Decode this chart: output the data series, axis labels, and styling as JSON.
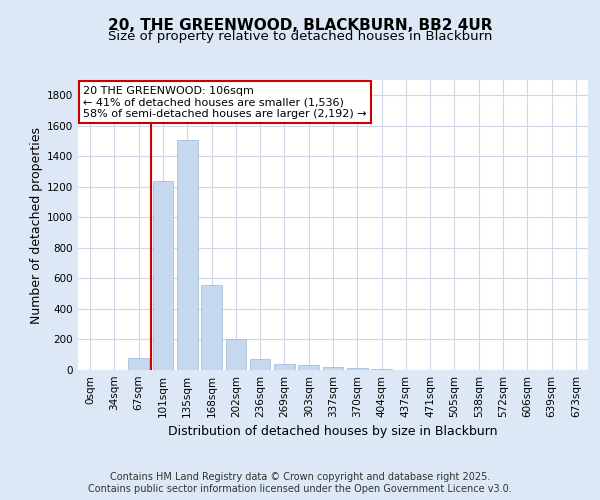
{
  "title": "20, THE GREENWOOD, BLACKBURN, BB2 4UR",
  "subtitle": "Size of property relative to detached houses in Blackburn",
  "xlabel": "Distribution of detached houses by size in Blackburn",
  "ylabel": "Number of detached properties",
  "categories": [
    "0sqm",
    "34sqm",
    "67sqm",
    "101sqm",
    "135sqm",
    "168sqm",
    "202sqm",
    "236sqm",
    "269sqm",
    "303sqm",
    "337sqm",
    "370sqm",
    "404sqm",
    "437sqm",
    "471sqm",
    "505sqm",
    "538sqm",
    "572sqm",
    "606sqm",
    "639sqm",
    "673sqm"
  ],
  "values": [
    0,
    0,
    80,
    1240,
    1510,
    560,
    205,
    70,
    38,
    30,
    20,
    15,
    5,
    2,
    1,
    1,
    0,
    0,
    0,
    0,
    0
  ],
  "bar_color": "#c5d8ee",
  "bar_edgecolor": "#9ab8d8",
  "vline_color": "#cc0000",
  "vline_index": 3,
  "ylim_max": 1900,
  "yticks": [
    0,
    200,
    400,
    600,
    800,
    1000,
    1200,
    1400,
    1600,
    1800
  ],
  "annotation_line1": "20 THE GREENWOOD: 106sqm",
  "annotation_line2": "← 41% of detached houses are smaller (1,536)",
  "annotation_line3": "58% of semi-detached houses are larger (2,192) →",
  "annotation_box_edgecolor": "#cc0000",
  "background_color": "#dce8f5",
  "plot_background_color": "#ffffff",
  "grid_color": "#d0d8e8",
  "title_fontsize": 11,
  "subtitle_fontsize": 9.5,
  "axis_label_fontsize": 9,
  "tick_fontsize": 7.5,
  "annotation_fontsize": 8,
  "footer_fontsize": 7
}
